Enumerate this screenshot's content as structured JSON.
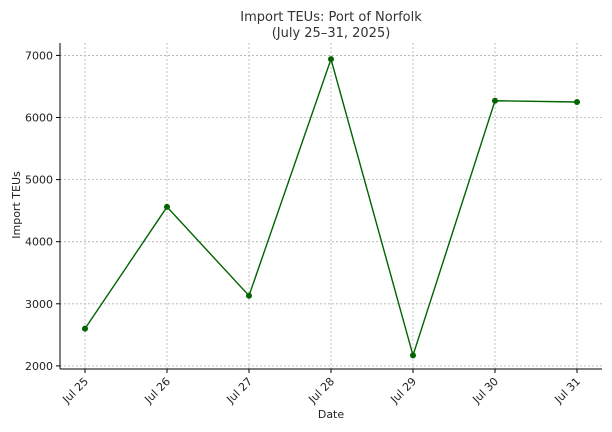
{
  "chart_data": {
    "type": "line",
    "title": "Import TEUs: Port of Norfolk",
    "subtitle": "(July 25–31, 2025)",
    "xlabel": "Date",
    "ylabel": "Import TEUs",
    "categories": [
      "Jul 25",
      "Jul 26",
      "Jul 27",
      "Jul 28",
      "Jul 29",
      "Jul 30",
      "Jul 31"
    ],
    "series": [
      {
        "values": [
          2600,
          4560,
          3130,
          6940,
          2170,
          6270,
          6250
        ],
        "color": "#006400"
      }
    ],
    "ylim": [
      1950,
      7200
    ],
    "yticks": [
      2000,
      3000,
      4000,
      5000,
      6000,
      7000
    ],
    "grid": true,
    "legend": "none"
  }
}
